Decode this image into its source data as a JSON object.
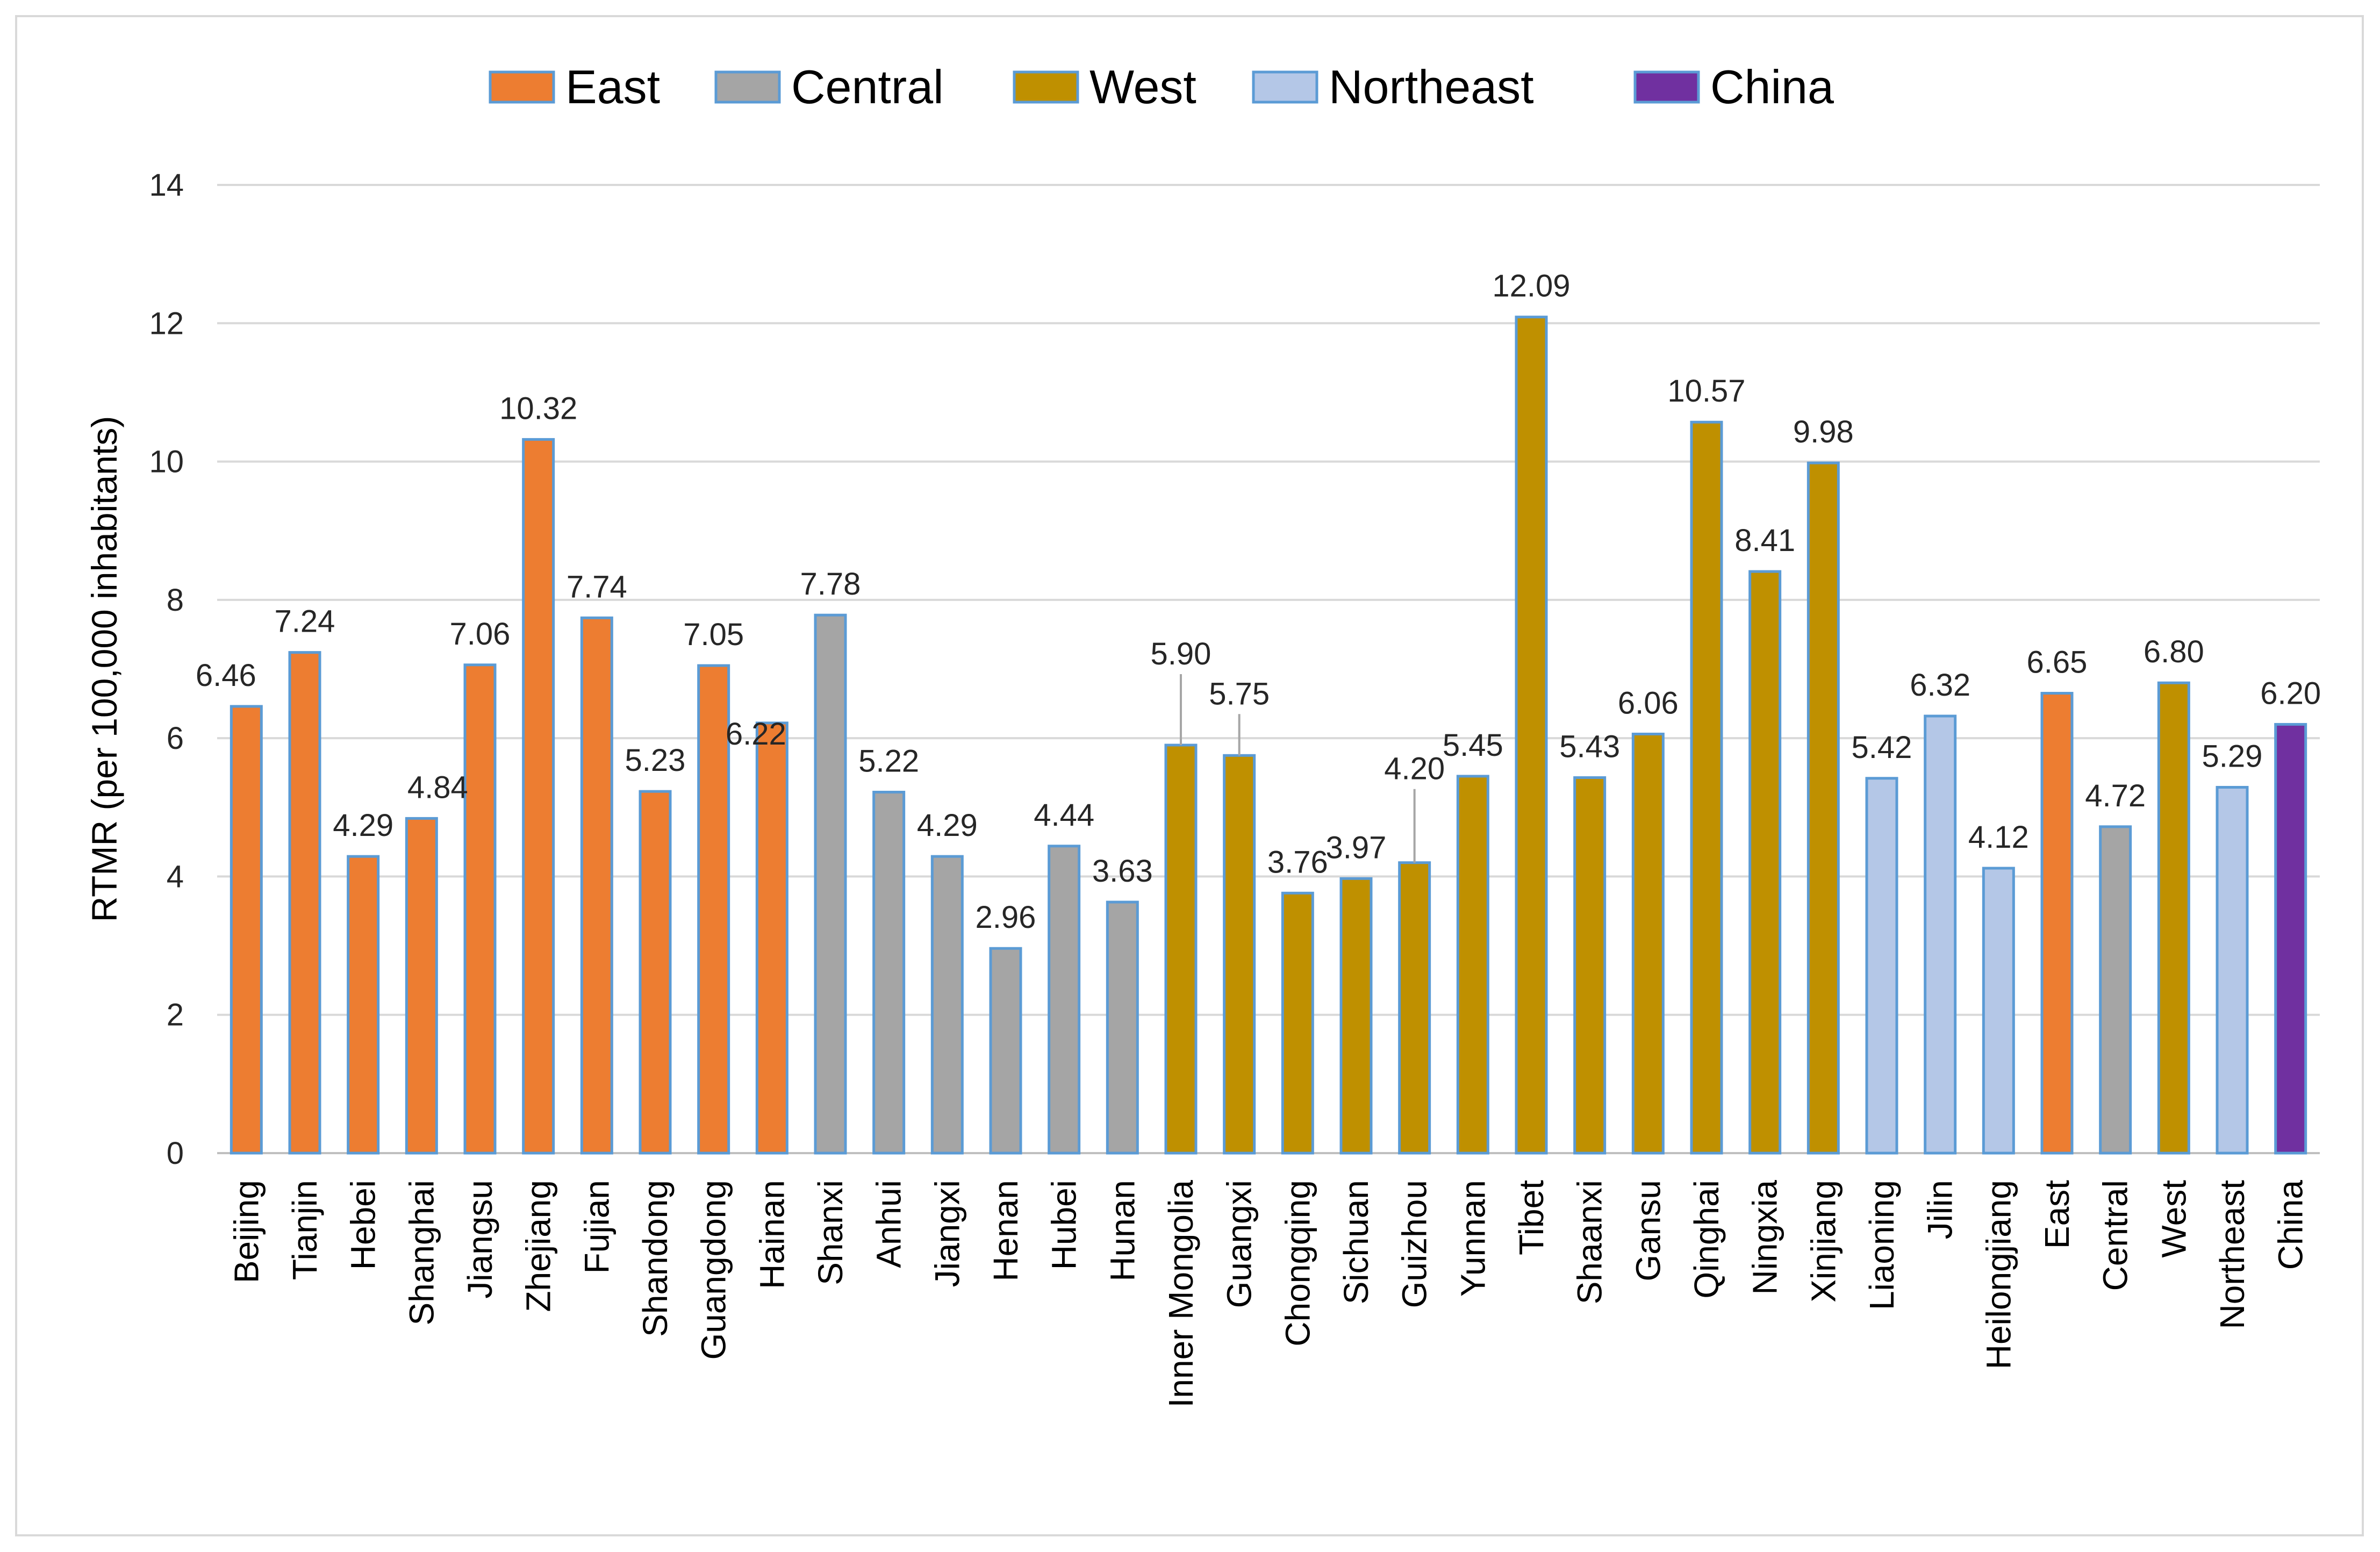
{
  "chart_data": {
    "type": "bar",
    "title": "",
    "xlabel": "",
    "ylabel": "RTMR (per 100,000 inhabitants)",
    "ylim": [
      0,
      14
    ],
    "yticks": [
      0,
      2,
      4,
      6,
      8,
      10,
      12,
      14
    ],
    "grid": true,
    "legend_position": "top",
    "legend": [
      {
        "name": "East",
        "color": "#ED7D31"
      },
      {
        "name": "Central",
        "color": "#A5A5A5"
      },
      {
        "name": "West",
        "color": "#BF9000"
      },
      {
        "name": "Northeast",
        "color": "#B4C7E7"
      },
      {
        "name": "China",
        "color": "#7030A0"
      }
    ],
    "categories": [
      "Beijing",
      "Tianjin",
      "Hebei",
      "Shanghai",
      "Jiangsu",
      "Zhejiang",
      "Fujian",
      "Shandong",
      "Guangdong",
      "Hainan",
      "Shanxi",
      "Anhui",
      "Jiangxi",
      "Henan",
      "Hubei",
      "Hunan",
      "Inner Mongolia",
      "Guangxi",
      "Chongqing",
      "Sichuan",
      "Guizhou",
      "Yunnan",
      "Tibet",
      "Shaanxi",
      "Gansu",
      "Qinghai",
      "Ningxia",
      "Xinjiang",
      "Liaoning",
      "Jilin",
      "Heilongjiang",
      "East",
      "Central",
      "West",
      "Northeast",
      "China"
    ],
    "values": [
      6.46,
      7.24,
      4.29,
      4.84,
      7.06,
      10.32,
      7.74,
      5.23,
      7.05,
      6.22,
      7.78,
      5.22,
      4.29,
      2.96,
      4.44,
      3.63,
      5.9,
      5.75,
      3.76,
      3.97,
      4.2,
      5.45,
      12.09,
      5.43,
      6.06,
      10.57,
      8.41,
      9.98,
      5.42,
      6.32,
      4.12,
      6.65,
      4.72,
      6.8,
      5.29,
      6.2
    ],
    "value_labels": [
      "6.46",
      "7.24",
      "4.29",
      "4.84",
      "7.06",
      "10.32",
      "7.74",
      "5.23",
      "7.05",
      "6.22",
      "7.78",
      "5.22",
      "4.29",
      "2.96",
      "4.44",
      "3.63",
      "5.90",
      "5.75",
      "3.76",
      "3.97",
      "4.20",
      "5.45",
      "12.09",
      "5.43",
      "6.06",
      "10.57",
      "8.41",
      "9.98",
      "5.42",
      "6.32",
      "4.12",
      "6.65",
      "4.72",
      "6.80",
      "5.29",
      "6.20"
    ],
    "groups": [
      "East",
      "East",
      "East",
      "East",
      "East",
      "East",
      "East",
      "East",
      "East",
      "East",
      "Central",
      "Central",
      "Central",
      "Central",
      "Central",
      "Central",
      "West",
      "West",
      "West",
      "West",
      "West",
      "West",
      "West",
      "West",
      "West",
      "West",
      "West",
      "West",
      "Northeast",
      "Northeast",
      "Northeast",
      "East",
      "Central",
      "West",
      "Northeast",
      "China"
    ]
  }
}
